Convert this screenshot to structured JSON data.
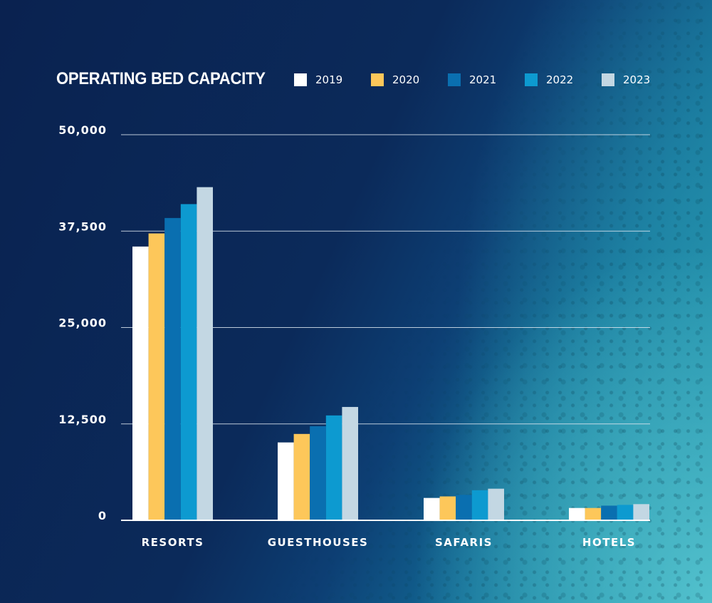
{
  "chart_data": {
    "type": "bar",
    "title": "OPERATING BED CAPACITY",
    "xlabel": "",
    "ylabel": "",
    "categories": [
      "RESORTS",
      "GUESTHOUSES",
      "SAFARIS",
      "HOTELS"
    ],
    "series": [
      {
        "name": "2019",
        "color": "#ffffff",
        "values": [
          35500,
          10100,
          2900,
          1600
        ]
      },
      {
        "name": "2020",
        "color": "#fdc75a",
        "values": [
          37200,
          11200,
          3100,
          1600
        ]
      },
      {
        "name": "2021",
        "color": "#0a6fb0",
        "values": [
          39200,
          12200,
          3300,
          1900
        ]
      },
      {
        "name": "2022",
        "color": "#0d9ad0",
        "values": [
          41000,
          13600,
          3900,
          2000
        ]
      },
      {
        "name": "2023",
        "color": "#c3d7e3",
        "values": [
          43200,
          14700,
          4100,
          2100
        ]
      }
    ],
    "yticks": [
      0,
      12500,
      25000,
      37500,
      50000
    ],
    "ytick_labels": [
      "0",
      "12,500",
      "25,000",
      "37,500",
      "50,000"
    ],
    "ylim": [
      0,
      50000
    ],
    "grid": true,
    "legend_position": "top"
  }
}
